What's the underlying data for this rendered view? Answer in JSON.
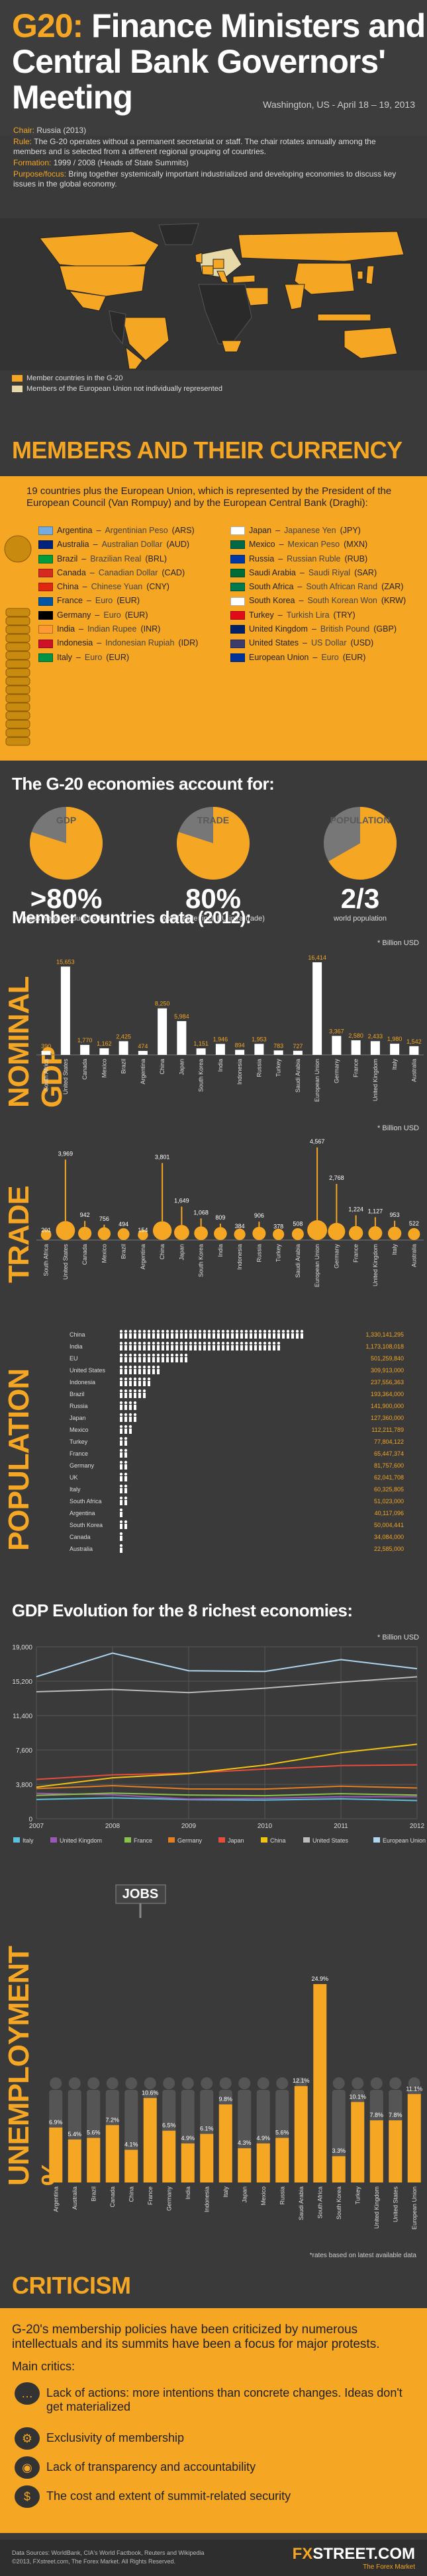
{
  "header": {
    "title_part1": "G20:",
    "title_part2": "Finance Ministers and Central Bank Governors' Meeting",
    "location": "Washington, US - April 18 – 19, 2013",
    "info": [
      {
        "k": "Chair:",
        "v": "Russia (2013)"
      },
      {
        "k": "Rule:",
        "v": "The G-20 operates without a permanent secretariat or staff. The chair rotates annually among the members and is selected from a different regional grouping of countries."
      },
      {
        "k": "Formation:",
        "v": "1999 / 2008 (Heads of State Summits)"
      },
      {
        "k": "Purpose/focus:",
        "v": "Bring together systemically important industrialized and developing economies to discuss key issues in the global economy."
      }
    ]
  },
  "map": {
    "legend": [
      "Member countries in the G-20",
      "Members of the European Union not individually represented"
    ],
    "colors": {
      "member": "#f5a623",
      "eu": "#e8d9a8",
      "other": "#2a2a2a"
    }
  },
  "members": {
    "title": "MEMBERS AND THEIR CURRENCY",
    "intro": "19 countries plus the European Union, which is represented by the President of the European Council (Van Rompuy) and by the European Central Bank (Draghi):",
    "left": [
      {
        "country": "Argentina",
        "currency": "Argentinian Peso",
        "code": "(ARS)"
      },
      {
        "country": "Australia",
        "currency": "Australian Dollar",
        "code": "(AUD)"
      },
      {
        "country": "Brazil",
        "currency": "Brazilian Real",
        "code": "(BRL)"
      },
      {
        "country": "Canada",
        "currency": "Canadian Dollar",
        "code": "(CAD)"
      },
      {
        "country": "China",
        "currency": "Chinese Yuan",
        "code": "(CNY)"
      },
      {
        "country": "France",
        "currency": "Euro",
        "code": "(EUR)"
      },
      {
        "country": "Germany",
        "currency": "Euro",
        "code": "(EUR)"
      },
      {
        "country": "India",
        "currency": "Indian Rupee",
        "code": "(INR)"
      },
      {
        "country": "Indonesia",
        "currency": "Indonesian Rupiah",
        "code": "(IDR)"
      },
      {
        "country": "Italy",
        "currency": "Euro",
        "code": "(EUR)"
      }
    ],
    "right": [
      {
        "country": "Japan",
        "currency": "Japanese Yen",
        "code": "(JPY)"
      },
      {
        "country": "Mexico",
        "currency": "Mexican Peso",
        "code": "(MXN)"
      },
      {
        "country": "Russia",
        "currency": "Russian Ruble",
        "code": "(RUB)"
      },
      {
        "country": "Saudi Arabia",
        "currency": "Saudi Riyal",
        "code": "(SAR)"
      },
      {
        "country": "South Africa",
        "currency": "South African Rand",
        "code": "(ZAR)"
      },
      {
        "country": "South Korea",
        "currency": "South Korean Won",
        "code": "(KRW)"
      },
      {
        "country": "Turkey",
        "currency": "Turkish Lira",
        "code": "(TRY)"
      },
      {
        "country": "United Kingdom",
        "currency": "British Pound",
        "code": "(GBP)"
      },
      {
        "country": "United States",
        "currency": "US Dollar",
        "code": "(USD)"
      },
      {
        "country": "European Union",
        "currency": "Euro",
        "code": "(EUR)"
      }
    ],
    "flag_colors_left": [
      "#74acdf",
      "#00247d",
      "#009c3b",
      "#d52b1e",
      "#de2910",
      "#0055a4",
      "#000000",
      "#ff9933",
      "#ce1126",
      "#009246"
    ],
    "flag_colors_right": [
      "#ffffff",
      "#006847",
      "#0039a6",
      "#006c35",
      "#007a4d",
      "#ffffff",
      "#e30a17",
      "#012169",
      "#3c3b6e",
      "#003399"
    ]
  },
  "share": {
    "title": "The G-20 economies account for:",
    "items": [
      {
        "label": "GDP",
        "big": ">80%",
        "small": "gross world product (GWP)",
        "value": 0.8
      },
      {
        "label": "TRADE",
        "big": "80%",
        "small": "world trade (incl. EU intra-trade)",
        "value": 0.8
      },
      {
        "label": "POPULATION",
        "big": "2/3",
        "small": "world population",
        "value": 0.667
      }
    ]
  },
  "members_data_title": "Member countries data (2012):",
  "unit_billion": "* Billion USD",
  "chart_data": [
    {
      "type": "bar",
      "title": "NOMINAL GDP",
      "unit": "* Billion USD",
      "categories": [
        "South Africa",
        "United States",
        "Canada",
        "Mexico",
        "Brazil",
        "Argentina",
        "China",
        "Japan",
        "South Korea",
        "India",
        "Indonesia",
        "Russia",
        "Turkey",
        "Saudi Arabia",
        "European Union",
        "Germany",
        "France",
        "United Kingdom",
        "Italy",
        "Australia"
      ],
      "values": [
        390,
        15653,
        1770,
        1162,
        2425,
        474,
        8250,
        5984,
        1151,
        1946,
        894,
        1953,
        783,
        727,
        16414,
        3367,
        2580,
        2433,
        1980,
        1542
      ],
      "labels": [
        "390",
        "15,653",
        "1,770",
        "1,162",
        "2,425",
        "474",
        "8,250",
        "5,984",
        "1,151",
        "1,946",
        "894",
        "1,953",
        "783",
        "727",
        "16,414",
        "3,367",
        "2,580",
        "2,433",
        "1,980",
        "1,542"
      ]
    },
    {
      "type": "bar",
      "title": "TRADE",
      "unit": "* Billion USD",
      "categories": [
        "South Africa",
        "United States",
        "Canada",
        "Mexico",
        "Brazil",
        "Argentina",
        "China",
        "Japan",
        "South Korea",
        "India",
        "Indonesia",
        "Russia",
        "Turkey",
        "Saudi Arabia",
        "European Union",
        "Germany",
        "France",
        "United Kingdom",
        "Italy",
        "Australia"
      ],
      "values": [
        201,
        3969,
        942,
        756,
        494,
        154,
        3801,
        1649,
        1068,
        809,
        384,
        906,
        378,
        508,
        4567,
        2768,
        1224,
        1127,
        953,
        522
      ],
      "labels": [
        "201",
        "3,969",
        "942",
        "756",
        "494",
        "154",
        "3,801",
        "1,649",
        "1,068",
        "809",
        "384",
        "906",
        "378",
        "508",
        "4,567",
        "2,768",
        "1,224",
        "1,127",
        "953",
        "522"
      ]
    },
    {
      "type": "bar",
      "title": "POPULATION",
      "categories": [
        "China",
        "India",
        "EU",
        "United States",
        "Indonesia",
        "Brazil",
        "Russia",
        "Japan",
        "Mexico",
        "Turkey",
        "France",
        "Germany",
        "UK",
        "Italy",
        "South Africa",
        "Argentina",
        "South Korea",
        "Canada",
        "Australia"
      ],
      "values": [
        1330141295,
        1173108018,
        501259840,
        309913000,
        237556363,
        193364000,
        141900000,
        127360000,
        112211789,
        77804122,
        65447374,
        81757600,
        62041708,
        60325805,
        51023000,
        40117096,
        50004441,
        34084000,
        22585000
      ],
      "labels": [
        "1,330,141,295",
        "1,173,108,018",
        "501,259,840",
        "309,913,000",
        "237,556,363",
        "193,364,000",
        "141,900,000",
        "127,360,000",
        "112,211,789",
        "77,804,122",
        "65,447,374",
        "81,757,600",
        "62,041,708",
        "60,325,805",
        "51,023,000",
        "40,117,096",
        "50,004,441",
        "34,084,000",
        "22,585,000"
      ]
    },
    {
      "type": "line",
      "title": "GDP Evolution for the 8 richest economies:",
      "unit": "* Billion USD",
      "x": [
        "2007",
        "2008",
        "2009",
        "2010",
        "2011",
        "2012"
      ],
      "ylim": [
        0,
        19000
      ],
      "yticks": [
        0,
        3800,
        7600,
        11400,
        15200,
        19000
      ],
      "yticklabels": [
        "0",
        "3,800",
        "7,600",
        "11,400",
        "15,200",
        "19,000"
      ],
      "series": [
        {
          "name": "Italy",
          "color": "#5bc0de",
          "values": [
            2130,
            2310,
            2110,
            2060,
            2200,
            2010
          ]
        },
        {
          "name": "United Kingdom",
          "color": "#9b59b6",
          "values": [
            2800,
            2650,
            2170,
            2250,
            2430,
            2440
          ]
        },
        {
          "name": "France",
          "color": "#8bc34a",
          "values": [
            2580,
            2830,
            2620,
            2550,
            2770,
            2610
          ]
        },
        {
          "name": "Germany",
          "color": "#e67e22",
          "values": [
            3330,
            3650,
            3300,
            3280,
            3600,
            3400
          ]
        },
        {
          "name": "Japan",
          "color": "#e74c3c",
          "values": [
            4350,
            4850,
            5040,
            5490,
            5870,
            5960
          ]
        },
        {
          "name": "China",
          "color": "#f1c40f",
          "values": [
            3490,
            4520,
            4990,
            5930,
            7300,
            8230
          ]
        },
        {
          "name": "United States",
          "color": "#bbbbbb",
          "values": [
            14030,
            14290,
            13940,
            14420,
            15080,
            15680
          ]
        },
        {
          "name": "European Union",
          "color": "#aed6f1",
          "values": [
            15700,
            18300,
            16350,
            16280,
            17580,
            16580
          ]
        }
      ]
    },
    {
      "type": "bar",
      "title": "UNEMPLOYMENT %",
      "categories": [
        "Argentina",
        "Australia",
        "Brazil",
        "Canada",
        "China",
        "France",
        "Germany",
        "India",
        "Indonesia",
        "Italy",
        "Japan",
        "Mexico",
        "Russia",
        "Saudi Arabia",
        "South Africa",
        "South Korea",
        "Turkey",
        "United Kingdom",
        "United States",
        "European Union"
      ],
      "values": [
        6.9,
        5.4,
        5.6,
        7.2,
        4.1,
        10.6,
        6.5,
        4.9,
        6.1,
        9.8,
        4.3,
        4.9,
        5.6,
        12.1,
        24.9,
        3.3,
        10.1,
        7.8,
        7.8,
        11.1
      ],
      "labels": [
        "6.9%",
        "5.4%",
        "5.6%",
        "7.2%",
        "4.1%",
        "10.6%",
        "6.5%",
        "4.9%",
        "6.1%",
        "9.8%",
        "4.3%",
        "4.9%",
        "5.6%",
        "12.1%",
        "24.9%",
        "3.3%",
        "10.1%",
        "7.8%",
        "7.8%",
        "11.1%"
      ],
      "note": "*rates based on latest available data"
    }
  ],
  "jobs_label": "JOBS",
  "criticism": {
    "title": "CRITICISM",
    "text": "G-20's membership policies have been criticized by numerous intellectuals and its summits have been a focus for major protests.",
    "main": "Main critics:",
    "items": [
      {
        "icon": "blah-icon",
        "glyph": "…",
        "text": "Lack of actions: more intentions than concrete changes. Ideas don't get materialized"
      },
      {
        "icon": "gears-icon",
        "glyph": "⚙",
        "text": "Exclusivity of membership"
      },
      {
        "icon": "eye-icon",
        "glyph": "◉",
        "text": "Lack of transparency and accountability"
      },
      {
        "icon": "money-icon",
        "glyph": "$",
        "text": "The cost and extent of summit-related security"
      }
    ]
  },
  "footer": {
    "sources": "Data Sources: WorldBank, CIA's World Factbook, Reuters and Wikipedia",
    "copyright": "©2013, FXstreet.com, The Forex Market. All Rights Reserved.",
    "logo_fx": "FX",
    "logo_rest": "STREET.COM",
    "tagline": "The Forex Market"
  }
}
